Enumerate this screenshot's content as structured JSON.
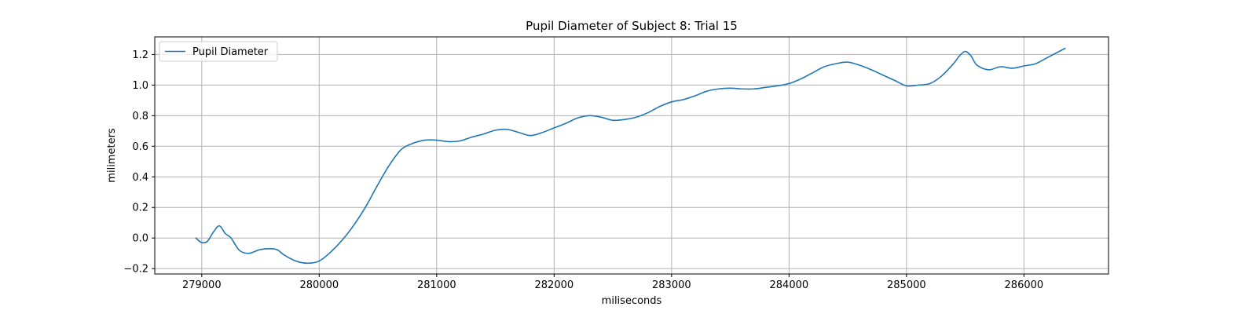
{
  "chart_data": {
    "type": "line",
    "title": "Pupil Diameter of Subject 8: Trial 15",
    "xlabel": "miliseconds",
    "ylabel": "milimeters",
    "xlim": [
      278600,
      286720
    ],
    "ylim": [
      -0.235,
      1.315
    ],
    "xticks": [
      279000,
      280000,
      281000,
      282000,
      283000,
      284000,
      285000,
      286000
    ],
    "xtick_labels": [
      "279000",
      "280000",
      "281000",
      "282000",
      "283000",
      "284000",
      "285000",
      "286000"
    ],
    "yticks": [
      -0.2,
      0.0,
      0.2,
      0.4,
      0.6,
      0.8,
      1.0,
      1.2
    ],
    "ytick_labels": [
      "−0.2",
      "0.0",
      "0.2",
      "0.4",
      "0.6",
      "0.8",
      "1.0",
      "1.2"
    ],
    "grid": true,
    "legend": {
      "position": "upper-left",
      "entries": [
        "Pupil Diameter"
      ]
    },
    "colors": {
      "series": "#1f77b4",
      "grid": "#b0b0b0"
    },
    "series": [
      {
        "name": "Pupil Diameter",
        "x": [
          278950,
          279000,
          279050,
          279100,
          279150,
          279200,
          279250,
          279320,
          279400,
          279500,
          279600,
          279650,
          279700,
          279800,
          279900,
          280000,
          280100,
          280200,
          280300,
          280400,
          280500,
          280600,
          280700,
          280800,
          280900,
          281000,
          281100,
          281200,
          281300,
          281400,
          281500,
          281600,
          281700,
          281800,
          281900,
          282000,
          282100,
          282200,
          282300,
          282400,
          282500,
          282600,
          282700,
          282800,
          282900,
          283000,
          283100,
          283200,
          283300,
          283400,
          283500,
          283600,
          283700,
          283800,
          283900,
          284000,
          284100,
          284200,
          284300,
          284400,
          284500,
          284600,
          284700,
          284800,
          284900,
          285000,
          285100,
          285200,
          285300,
          285400,
          285450,
          285500,
          285550,
          285600,
          285700,
          285800,
          285900,
          286000,
          286100,
          286200,
          286350
        ],
        "values": [
          0.0,
          -0.03,
          -0.02,
          0.04,
          0.08,
          0.03,
          0.0,
          -0.08,
          -0.1,
          -0.075,
          -0.07,
          -0.08,
          -0.11,
          -0.15,
          -0.165,
          -0.15,
          -0.09,
          -0.01,
          0.09,
          0.21,
          0.35,
          0.48,
          0.58,
          0.62,
          0.64,
          0.64,
          0.63,
          0.635,
          0.66,
          0.68,
          0.705,
          0.71,
          0.69,
          0.67,
          0.69,
          0.72,
          0.75,
          0.785,
          0.8,
          0.79,
          0.77,
          0.775,
          0.79,
          0.82,
          0.86,
          0.89,
          0.905,
          0.93,
          0.96,
          0.975,
          0.98,
          0.975,
          0.975,
          0.985,
          0.995,
          1.01,
          1.04,
          1.08,
          1.12,
          1.14,
          1.15,
          1.13,
          1.1,
          1.065,
          1.03,
          0.995,
          1.0,
          1.01,
          1.06,
          1.14,
          1.19,
          1.22,
          1.19,
          1.13,
          1.1,
          1.12,
          1.11,
          1.125,
          1.14,
          1.18,
          1.24
        ]
      }
    ]
  }
}
